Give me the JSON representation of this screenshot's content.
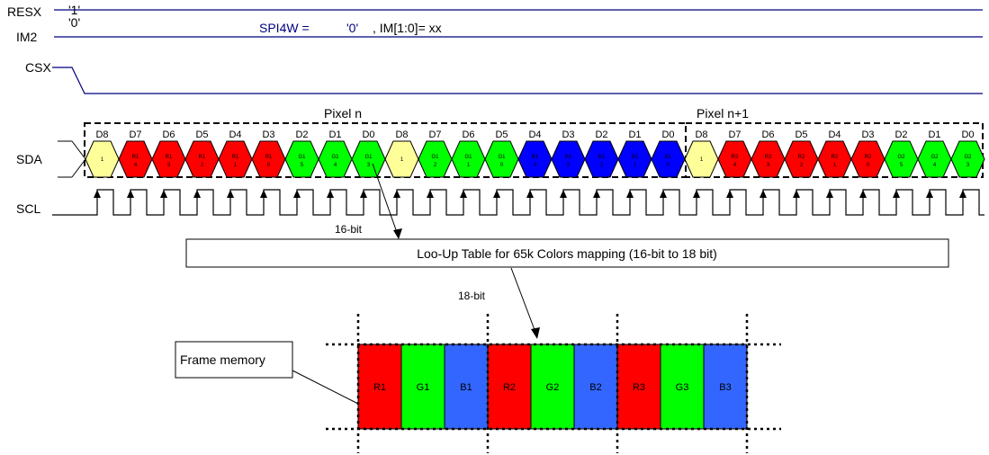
{
  "signals": {
    "resx": "RESX",
    "im2": "IM2",
    "csx": "CSX",
    "sda": "SDA",
    "scl": "SCL"
  },
  "levels": {
    "resx": "'1'",
    "im2": "'0'"
  },
  "config_text": {
    "spi4w": "SPI4W =",
    "spi4w_value": "'0'",
    "im_setting": ", IM[1:0]= xx"
  },
  "pixel_labels": [
    "Pixel n",
    "Pixel n+1"
  ],
  "bit_labels": [
    "D8",
    "D7",
    "D6",
    "D5",
    "D4",
    "D3",
    "D2",
    "D1",
    "D0",
    "D8",
    "D7",
    "D6",
    "D5",
    "D4",
    "D3",
    "D2",
    "D1",
    "D0",
    "D8",
    "D7",
    "D6",
    "D5",
    "D4",
    "D3",
    "D2",
    "D1",
    "D0"
  ],
  "sda_cells": [
    {
      "a": "1",
      "b": "",
      "color": "#ffff99"
    },
    {
      "a": "R1",
      "b": "4",
      "color": "#ff0000"
    },
    {
      "a": "R1",
      "b": "3",
      "color": "#ff0000"
    },
    {
      "a": "R1",
      "b": "2",
      "color": "#ff0000"
    },
    {
      "a": "R1",
      "b": "1",
      "color": "#ff0000"
    },
    {
      "a": "R1",
      "b": "0",
      "color": "#ff0000"
    },
    {
      "a": "G1",
      "b": "5",
      "color": "#00ff00"
    },
    {
      "a": "G1",
      "b": "4",
      "color": "#00ff00"
    },
    {
      "a": "G1",
      "b": "3",
      "color": "#00ff00"
    },
    {
      "a": "1",
      "b": "",
      "color": "#ffff99"
    },
    {
      "a": "G1",
      "b": "2",
      "color": "#00ff00"
    },
    {
      "a": "G1",
      "b": "1",
      "color": "#00ff00"
    },
    {
      "a": "G1",
      "b": "0",
      "color": "#00ff00"
    },
    {
      "a": "B1",
      "b": "4",
      "color": "#0000ff"
    },
    {
      "a": "B1",
      "b": "3",
      "color": "#0000ff"
    },
    {
      "a": "B1",
      "b": "2",
      "color": "#0000ff"
    },
    {
      "a": "B1",
      "b": "1",
      "color": "#0000ff"
    },
    {
      "a": "B1",
      "b": "0",
      "color": "#0000ff"
    },
    {
      "a": "1",
      "b": "",
      "color": "#ffff99"
    },
    {
      "a": "R2",
      "b": "4",
      "color": "#ff0000"
    },
    {
      "a": "R2",
      "b": "3",
      "color": "#ff0000"
    },
    {
      "a": "R2",
      "b": "2",
      "color": "#ff0000"
    },
    {
      "a": "R2",
      "b": "1",
      "color": "#ff0000"
    },
    {
      "a": "R2",
      "b": "0",
      "color": "#ff0000"
    },
    {
      "a": "G2",
      "b": "5",
      "color": "#00ff00"
    },
    {
      "a": "G2",
      "b": "4",
      "color": "#00ff00"
    },
    {
      "a": "G2",
      "b": "3",
      "color": "#00ff00"
    }
  ],
  "arrow_labels": {
    "sixteen_bit": "16-bit",
    "eighteen_bit": "18-bit"
  },
  "lut_label": "Loo-Up Table for 65k Colors mapping (16-bit to 18 bit)",
  "frame_memory_label": "Frame memory",
  "memory_cells": [
    {
      "label": "R1",
      "color": "#ff0000"
    },
    {
      "label": "G1",
      "color": "#00ff00"
    },
    {
      "label": "B1",
      "color": "#3366ff"
    },
    {
      "label": "R2",
      "color": "#ff0000"
    },
    {
      "label": "G2",
      "color": "#00ff00"
    },
    {
      "label": "B2",
      "color": "#3366ff"
    },
    {
      "label": "R3",
      "color": "#ff0000"
    },
    {
      "label": "G3",
      "color": "#00ff00"
    },
    {
      "label": "B3",
      "color": "#3366ff"
    }
  ],
  "colors": {
    "line": "#000080",
    "config_text": "#000080"
  }
}
